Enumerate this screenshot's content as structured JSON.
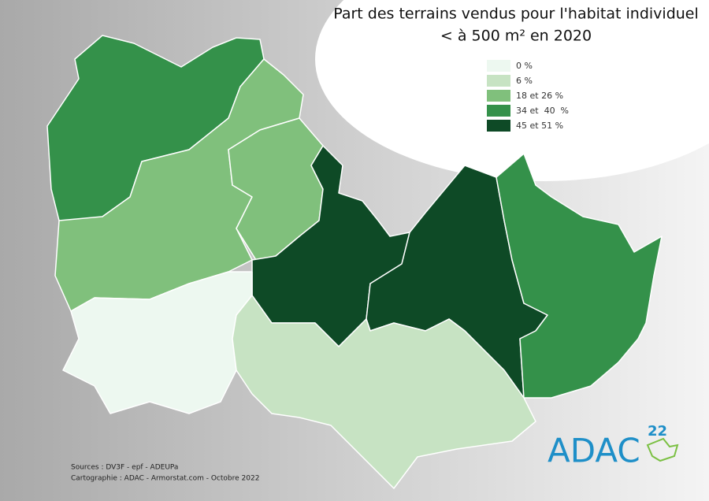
{
  "header": {
    "title_line1": "Part des terrains vendus pour l'habitat individuel",
    "title_line2": "< à 500 m² en 2020"
  },
  "legend": {
    "items": [
      {
        "label": "0 %",
        "color": "#edf8f0"
      },
      {
        "label": "6 %",
        "color": "#c7e3c3"
      },
      {
        "label": "18 et 26 %",
        "color": "#80c07c"
      },
      {
        "label": "34 et  40  %",
        "color": "#34914a"
      },
      {
        "label": "45 et 51 %",
        "color": "#0e4a26"
      }
    ]
  },
  "footer": {
    "sources": "Sources : DV3F - epf - ADEUPa",
    "credits": "Cartographie : ADAC - Armorstat.com - Octobre 2022"
  },
  "logo": {
    "text": "ADAC",
    "number": "22"
  }
}
